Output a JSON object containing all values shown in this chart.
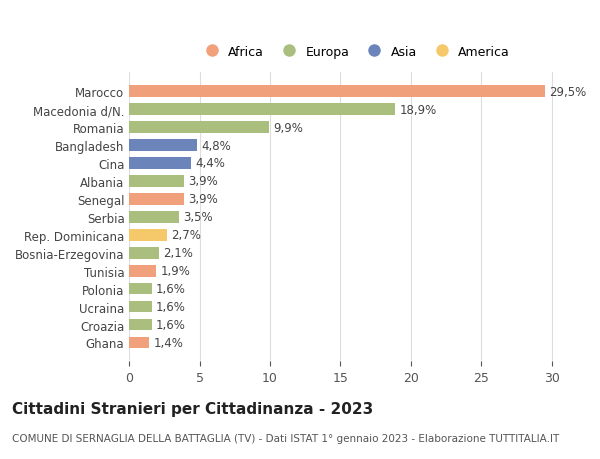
{
  "categories": [
    "Ghana",
    "Croazia",
    "Ucraina",
    "Polonia",
    "Tunisia",
    "Bosnia-Erzegovina",
    "Rep. Dominicana",
    "Serbia",
    "Senegal",
    "Albania",
    "Cina",
    "Bangladesh",
    "Romania",
    "Macedonia d/N.",
    "Marocco"
  ],
  "values": [
    1.4,
    1.6,
    1.6,
    1.6,
    1.9,
    2.1,
    2.7,
    3.5,
    3.9,
    3.9,
    4.4,
    4.8,
    9.9,
    18.9,
    29.5
  ],
  "continents": [
    "Africa",
    "Europa",
    "Europa",
    "Europa",
    "Africa",
    "Europa",
    "America",
    "Europa",
    "Africa",
    "Europa",
    "Asia",
    "Asia",
    "Europa",
    "Europa",
    "Africa"
  ],
  "colors": {
    "Africa": "#F0A07A",
    "Europa": "#AABF7E",
    "Asia": "#6B85BB",
    "America": "#F5C96A"
  },
  "legend_order": [
    "Africa",
    "Europa",
    "Asia",
    "America"
  ],
  "legend_colors": {
    "Africa": "#F0A07A",
    "Europa": "#AABF7E",
    "Asia": "#6B85BB",
    "America": "#F5C96A"
  },
  "xlim": [
    0,
    32
  ],
  "xticks": [
    0,
    5,
    10,
    15,
    20,
    25,
    30
  ],
  "title": "Cittadini Stranieri per Cittadinanza - 2023",
  "subtitle": "COMUNE DI SERNAGLIA DELLA BATTAGLIA (TV) - Dati ISTAT 1° gennaio 2023 - Elaborazione TUTTITALIA.IT",
  "background_color": "#ffffff",
  "grid_color": "#dddddd",
  "bar_height": 0.65,
  "label_fontsize": 8.5,
  "title_fontsize": 11,
  "subtitle_fontsize": 7.5
}
